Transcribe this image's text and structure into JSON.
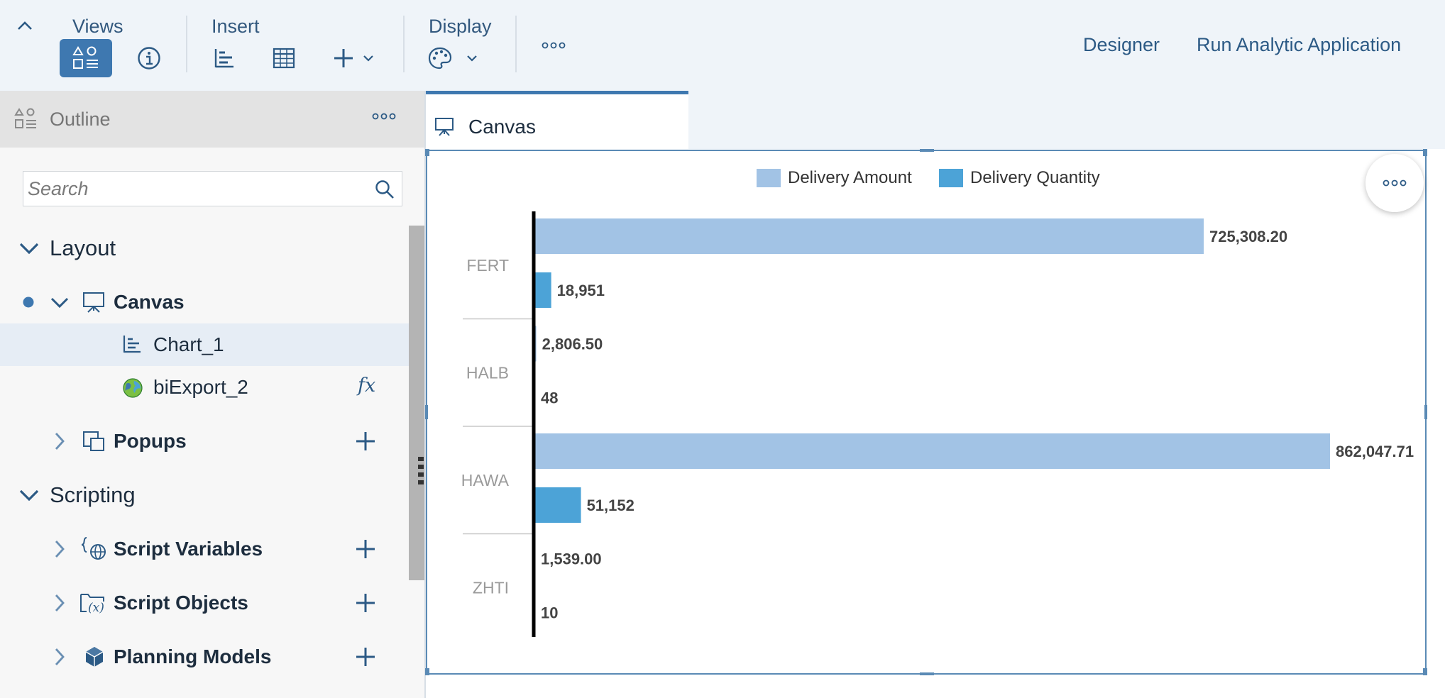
{
  "toolbar": {
    "views_label": "Views",
    "insert_label": "Insert",
    "display_label": "Display",
    "designer_label": "Designer",
    "run_label": "Run Analytic Application"
  },
  "outline": {
    "title": "Outline",
    "search_placeholder": "Search",
    "layout_label": "Layout",
    "canvas_label": "Canvas",
    "chart_label": "Chart_1",
    "export_label": "biExport_2",
    "fx_label": "fx",
    "popups_label": "Popups",
    "scripting_label": "Scripting",
    "script_variables_label": "Script Variables",
    "script_objects_label": "Script Objects",
    "planning_models_label": "Planning Models"
  },
  "canvas_tab": {
    "label": "Canvas"
  },
  "colors": {
    "delivery_amount": "#a2c3e5",
    "delivery_quantity": "#4ca3d7",
    "accent": "#3e78b0"
  },
  "chart_data": {
    "type": "bar",
    "orientation": "horizontal",
    "categories": [
      "FERT",
      "HALB",
      "HAWA",
      "ZHTI"
    ],
    "series": [
      {
        "name": "Delivery Amount",
        "values": [
          725308.2,
          2806.5,
          862047.71,
          1539.0
        ],
        "labels": [
          "725,308.20",
          "2,806.50",
          "862,047.71",
          "1,539.00"
        ]
      },
      {
        "name": "Delivery Quantity",
        "values": [
          18951,
          48,
          51152,
          10
        ],
        "labels": [
          "18,951",
          "48",
          "51,152",
          "10"
        ]
      }
    ],
    "legend": {
      "position": "top"
    },
    "grid": false
  }
}
